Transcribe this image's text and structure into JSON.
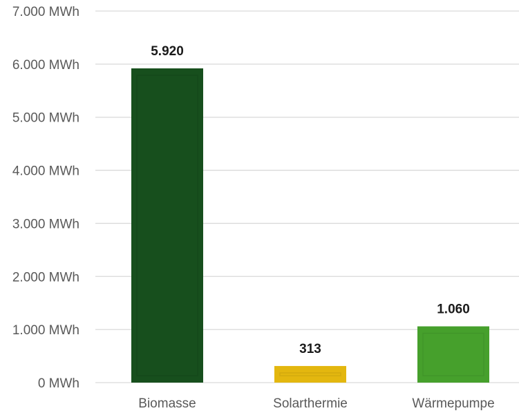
{
  "chart_data": {
    "type": "bar",
    "categories": [
      "Biomasse",
      "Solarthermie",
      "Wärmepumpe"
    ],
    "values": [
      5920,
      313,
      1060
    ],
    "value_labels": [
      "5.920",
      "313",
      "1.060"
    ],
    "ylim": [
      0,
      7000
    ],
    "y_ticks": [
      0,
      1000,
      2000,
      3000,
      4000,
      5000,
      6000,
      7000
    ],
    "y_tick_labels": [
      "0 MWh",
      "1.000 MWh",
      "2.000 MWh",
      "3.000 MWh",
      "4.000 MWh",
      "5.000 MWh",
      "6.000 MWh",
      "7.000 MWh"
    ],
    "colors": [
      "#174f1d",
      "#e3b70f",
      "#46a02c"
    ],
    "grid": true,
    "legend": "none"
  }
}
